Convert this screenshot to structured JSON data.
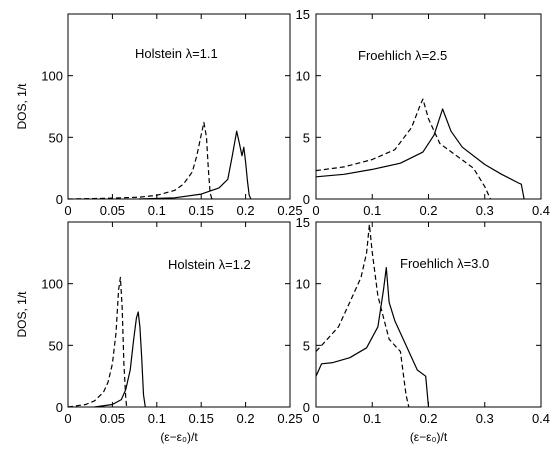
{
  "chart_data": [
    {
      "type": "line",
      "annotation": "Holstein λ=1.1",
      "ylabel": "DOS, 1/t",
      "xlabel": "",
      "xlim": [
        0,
        0.25
      ],
      "ylim": [
        0,
        150
      ],
      "xticks": [
        "0",
        "0.05",
        "0.1",
        "0.15",
        "0.2",
        "0.25"
      ],
      "yticks": [
        "0",
        "50",
        "100"
      ],
      "series": [
        {
          "style": "dashed",
          "x": [
            0,
            0.04,
            0.08,
            0.1,
            0.12,
            0.13,
            0.14,
            0.145,
            0.15,
            0.153,
            0.156,
            0.158,
            0.16,
            0.162
          ],
          "y": [
            0,
            0.5,
            1.5,
            3,
            7,
            12,
            22,
            35,
            52,
            62,
            50,
            25,
            5,
            0
          ]
        },
        {
          "style": "solid",
          "x": [
            0.08,
            0.12,
            0.15,
            0.17,
            0.18,
            0.185,
            0.19,
            0.193,
            0.196,
            0.198,
            0.2,
            0.202,
            0.204,
            0.206
          ],
          "y": [
            0,
            1,
            4,
            9,
            16,
            35,
            55,
            45,
            35,
            42,
            30,
            15,
            3,
            0
          ]
        }
      ]
    },
    {
      "type": "line",
      "annotation": "Froehlich λ=2.5",
      "ylabel": "",
      "xlabel": "",
      "xlim": [
        0,
        0.4
      ],
      "ylim": [
        0,
        15
      ],
      "xticks": [
        "0",
        "0.1",
        "0.2",
        "0.3",
        "0.4"
      ],
      "yticks": [
        "0",
        "5",
        "10",
        "15"
      ],
      "series": [
        {
          "style": "dashed",
          "x": [
            0,
            0.05,
            0.1,
            0.14,
            0.17,
            0.185,
            0.19,
            0.2,
            0.22,
            0.25,
            0.28,
            0.3,
            0.31
          ],
          "y": [
            2.3,
            2.6,
            3.2,
            4.0,
            5.8,
            7.6,
            8.1,
            6.5,
            4.5,
            3.5,
            2.5,
            1.0,
            0
          ]
        },
        {
          "style": "solid",
          "x": [
            0,
            0.05,
            0.1,
            0.15,
            0.19,
            0.21,
            0.225,
            0.24,
            0.26,
            0.3,
            0.33,
            0.36,
            0.365,
            0.37
          ],
          "y": [
            1.8,
            2.0,
            2.4,
            2.9,
            3.8,
            5.2,
            7.3,
            5.5,
            4.2,
            2.8,
            2.0,
            1.3,
            1.2,
            0
          ]
        }
      ]
    },
    {
      "type": "line",
      "annotation": "Holstein λ=1.2",
      "ylabel": "DOS, 1/t",
      "xlabel": "(ε−ε₀)/t",
      "xlim": [
        0,
        0.25
      ],
      "ylim": [
        0,
        150
      ],
      "xticks": [
        "0",
        "0.05",
        "0.1",
        "0.15",
        "0.2",
        "0.25"
      ],
      "yticks": [
        "0",
        "50",
        "100"
      ],
      "series": [
        {
          "style": "dashed",
          "x": [
            0,
            0.02,
            0.03,
            0.04,
            0.045,
            0.05,
            0.054,
            0.057,
            0.059,
            0.061,
            0.063,
            0.065,
            0.066
          ],
          "y": [
            0,
            2,
            5,
            12,
            20,
            35,
            60,
            95,
            105,
            80,
            35,
            8,
            0
          ]
        },
        {
          "style": "solid",
          "x": [
            0.03,
            0.05,
            0.06,
            0.065,
            0.07,
            0.074,
            0.077,
            0.079,
            0.081,
            0.083,
            0.085,
            0.087
          ],
          "y": [
            0,
            2,
            6,
            14,
            30,
            55,
            72,
            77,
            65,
            40,
            10,
            0
          ]
        }
      ]
    },
    {
      "type": "line",
      "annotation": "Froehlich λ=3.0",
      "ylabel": "",
      "xlabel": "(ε−ε₀)/t",
      "xlim": [
        0,
        0.4
      ],
      "ylim": [
        0,
        15
      ],
      "xticks": [
        "0",
        "0.1",
        "0.2",
        "0.3",
        "0.4"
      ],
      "yticks": [
        "0",
        "5",
        "10",
        "15"
      ],
      "series": [
        {
          "style": "dashed",
          "x": [
            0,
            0.02,
            0.04,
            0.06,
            0.08,
            0.09,
            0.095,
            0.1,
            0.11,
            0.13,
            0.15,
            0.16,
            0.165
          ],
          "y": [
            4.5,
            5.5,
            6.5,
            8.5,
            10.5,
            12.5,
            14.8,
            12.5,
            9,
            5.5,
            4.5,
            1,
            0
          ]
        },
        {
          "style": "solid",
          "x": [
            0,
            0.01,
            0.03,
            0.06,
            0.09,
            0.11,
            0.12,
            0.125,
            0.13,
            0.14,
            0.16,
            0.18,
            0.195,
            0.2
          ],
          "y": [
            2.5,
            3.5,
            3.6,
            4.0,
            4.8,
            6.5,
            9.5,
            11.3,
            8.5,
            7,
            5,
            3,
            2.5,
            0
          ]
        }
      ]
    }
  ]
}
